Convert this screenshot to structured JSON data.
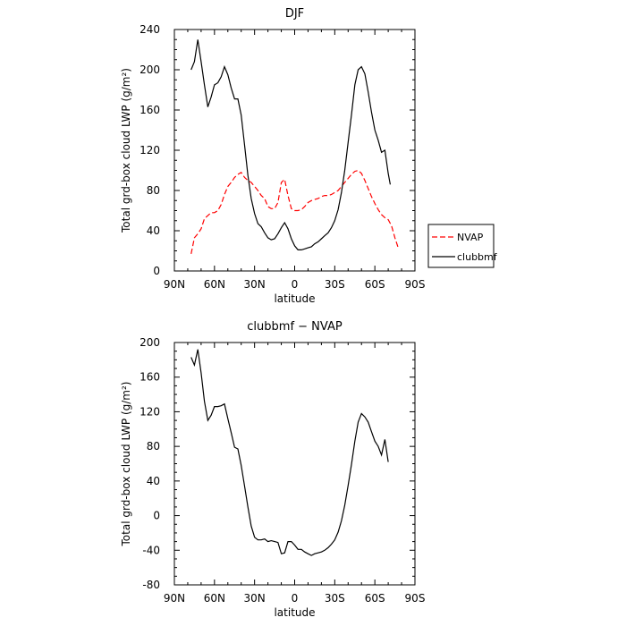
{
  "chart_data": [
    {
      "type": "line",
      "title": "DJF",
      "xlabel": "latitude",
      "ylabel": "Total grd-box cloud LWP (g/m²)",
      "xlim": [
        -90,
        90
      ],
      "ylim": [
        0,
        240
      ],
      "x_tick_values": [
        -90,
        -60,
        -30,
        0,
        30,
        60,
        90
      ],
      "x_tick_labels": [
        "90N",
        "60N",
        "30N",
        "0",
        "30S",
        "60S",
        "90S"
      ],
      "y_ticks": [
        0,
        40,
        80,
        120,
        160,
        200,
        240
      ],
      "legend_position": "right",
      "series": [
        {
          "name": "NVAP",
          "color": "#ff0000",
          "style": "dashed",
          "points": [
            [
              -77.5,
              17
            ],
            [
              -75,
              33
            ],
            [
              -72.5,
              37
            ],
            [
              -70,
              42
            ],
            [
              -67.5,
              52
            ],
            [
              -65,
              55
            ],
            [
              -62.5,
              58
            ],
            [
              -60,
              58
            ],
            [
              -57.5,
              60
            ],
            [
              -55,
              66
            ],
            [
              -52.5,
              76
            ],
            [
              -50,
              84
            ],
            [
              -47.5,
              88
            ],
            [
              -45,
              93
            ],
            [
              -42.5,
              96
            ],
            [
              -40,
              98
            ],
            [
              -37.5,
              93
            ],
            [
              -35,
              90
            ],
            [
              -32.5,
              88
            ],
            [
              -30,
              84
            ],
            [
              -27.5,
              80
            ],
            [
              -25,
              75
            ],
            [
              -22.5,
              72
            ],
            [
              -20,
              64
            ],
            [
              -17.5,
              62
            ],
            [
              -15,
              62
            ],
            [
              -12.5,
              68
            ],
            [
              -10,
              88
            ],
            [
              -7.5,
              91
            ],
            [
              -5,
              75
            ],
            [
              -2.5,
              62
            ],
            [
              0,
              60
            ],
            [
              2.5,
              60
            ],
            [
              5,
              61
            ],
            [
              7.5,
              64
            ],
            [
              10,
              68
            ],
            [
              12.5,
              70
            ],
            [
              15,
              71
            ],
            [
              17.5,
              72
            ],
            [
              20,
              74
            ],
            [
              22.5,
              75
            ],
            [
              25,
              75
            ],
            [
              27.5,
              76
            ],
            [
              30,
              78
            ],
            [
              32.5,
              80
            ],
            [
              35,
              84
            ],
            [
              37.5,
              88
            ],
            [
              40,
              92
            ],
            [
              42.5,
              96
            ],
            [
              45,
              99
            ],
            [
              47.5,
              100
            ],
            [
              50,
              97
            ],
            [
              52.5,
              90
            ],
            [
              55,
              82
            ],
            [
              57.5,
              74
            ],
            [
              60,
              67
            ],
            [
              62.5,
              61
            ],
            [
              65,
              56
            ],
            [
              67.5,
              53
            ],
            [
              70,
              51
            ],
            [
              72.5,
              45
            ],
            [
              75,
              33
            ],
            [
              77.5,
              23
            ]
          ]
        },
        {
          "name": "clubbmf",
          "color": "#000000",
          "style": "solid",
          "points": [
            [
              -77.5,
              200
            ],
            [
              -75,
              208
            ],
            [
              -72.5,
              230
            ],
            [
              -70,
              208
            ],
            [
              -67.5,
              185
            ],
            [
              -65,
              163
            ],
            [
              -62.5,
              173
            ],
            [
              -60,
              185
            ],
            [
              -57.5,
              187
            ],
            [
              -55,
              193
            ],
            [
              -52.5,
              203
            ],
            [
              -50,
              195
            ],
            [
              -47.5,
              182
            ],
            [
              -45,
              171
            ],
            [
              -42.5,
              171
            ],
            [
              -40,
              155
            ],
            [
              -37.5,
              125
            ],
            [
              -35,
              95
            ],
            [
              -32.5,
              72
            ],
            [
              -30,
              57
            ],
            [
              -27.5,
              47
            ],
            [
              -25,
              44
            ],
            [
              -22.5,
              38
            ],
            [
              -20,
              33
            ],
            [
              -17.5,
              31
            ],
            [
              -15,
              32
            ],
            [
              -12.5,
              37
            ],
            [
              -10,
              43
            ],
            [
              -7.5,
              48
            ],
            [
              -5,
              42
            ],
            [
              -2.5,
              32
            ],
            [
              0,
              25
            ],
            [
              2.5,
              21
            ],
            [
              5,
              21
            ],
            [
              7.5,
              22
            ],
            [
              10,
              23
            ],
            [
              12.5,
              24
            ],
            [
              15,
              27
            ],
            [
              17.5,
              29
            ],
            [
              20,
              32
            ],
            [
              22.5,
              35
            ],
            [
              25,
              38
            ],
            [
              27.5,
              43
            ],
            [
              30,
              50
            ],
            [
              32.5,
              61
            ],
            [
              35,
              78
            ],
            [
              37.5,
              100
            ],
            [
              40,
              128
            ],
            [
              42.5,
              155
            ],
            [
              45,
              185
            ],
            [
              47.5,
              200
            ],
            [
              50,
              203
            ],
            [
              52.5,
              196
            ],
            [
              55,
              178
            ],
            [
              57.5,
              158
            ],
            [
              60,
              140
            ],
            [
              62.5,
              130
            ],
            [
              65,
              118
            ],
            [
              67.5,
              120
            ],
            [
              70,
              97
            ],
            [
              71.5,
              86
            ]
          ]
        }
      ]
    },
    {
      "type": "line",
      "title": "clubbmf − NVAP",
      "xlabel": "latitude",
      "ylabel": "Total grd-box cloud LWP (g/m²)",
      "xlim": [
        -90,
        90
      ],
      "ylim": [
        -80,
        200
      ],
      "x_tick_values": [
        -90,
        -60,
        -30,
        0,
        30,
        60,
        90
      ],
      "x_tick_labels": [
        "90N",
        "60N",
        "30N",
        "0",
        "30S",
        "60S",
        "90S"
      ],
      "y_ticks": [
        -80,
        -40,
        0,
        40,
        80,
        120,
        160,
        200
      ],
      "series": [
        {
          "color": "#000000",
          "style": "solid",
          "points": [
            [
              -77.5,
              183
            ],
            [
              -75,
              174
            ],
            [
              -72.5,
              192
            ],
            [
              -70,
              165
            ],
            [
              -67.5,
              132
            ],
            [
              -65,
              110
            ],
            [
              -62.5,
              116
            ],
            [
              -60,
              126
            ],
            [
              -57.5,
              126
            ],
            [
              -55,
              127
            ],
            [
              -52.5,
              129
            ],
            [
              -50,
              112
            ],
            [
              -47.5,
              96
            ],
            [
              -45,
              79
            ],
            [
              -42.5,
              77
            ],
            [
              -40,
              58
            ],
            [
              -37.5,
              34
            ],
            [
              -35,
              10
            ],
            [
              -32.5,
              -12
            ],
            [
              -30,
              -25
            ],
            [
              -27.5,
              -28
            ],
            [
              -25,
              -28
            ],
            [
              -22.5,
              -27
            ],
            [
              -20,
              -30
            ],
            [
              -17.5,
              -29
            ],
            [
              -15,
              -30
            ],
            [
              -12.5,
              -31
            ],
            [
              -10,
              -44
            ],
            [
              -7.5,
              -43
            ],
            [
              -5,
              -30
            ],
            [
              -2.5,
              -30
            ],
            [
              0,
              -34
            ],
            [
              2.5,
              -39
            ],
            [
              5,
              -39
            ],
            [
              7.5,
              -42
            ],
            [
              10,
              -44
            ],
            [
              12.5,
              -46
            ],
            [
              15,
              -44
            ],
            [
              17.5,
              -43
            ],
            [
              20,
              -42
            ],
            [
              22.5,
              -40
            ],
            [
              25,
              -37
            ],
            [
              27.5,
              -33
            ],
            [
              30,
              -28
            ],
            [
              32.5,
              -19
            ],
            [
              35,
              -6
            ],
            [
              37.5,
              12
            ],
            [
              40,
              35
            ],
            [
              42.5,
              59
            ],
            [
              45,
              86
            ],
            [
              47.5,
              108
            ],
            [
              50,
              118
            ],
            [
              52.5,
              114
            ],
            [
              55,
              108
            ],
            [
              57.5,
              97
            ],
            [
              60,
              86
            ],
            [
              62.5,
              80
            ],
            [
              65,
              70
            ],
            [
              67.5,
              88
            ],
            [
              70,
              62
            ]
          ]
        }
      ]
    }
  ]
}
